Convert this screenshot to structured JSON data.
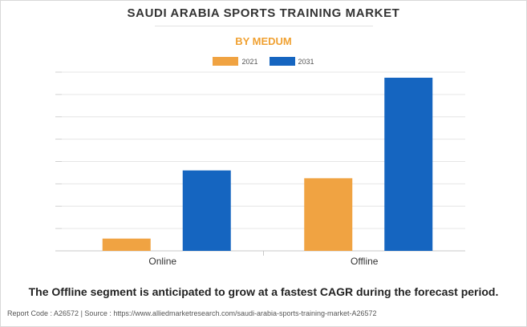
{
  "header": {
    "title": "SAUDI ARABIA SPORTS TRAINING MARKET",
    "subtitle": "BY MEDUM"
  },
  "footer": {
    "statement": "The Offline segment is anticipated to grow at a fastest CAGR during the forecast period.",
    "source": "Report Code : A26572  |  Source : https://www.alliedmarketresearch.com/saudi-arabia-sports-training-market-A26572"
  },
  "colors": {
    "series_2021": "#f0a342",
    "series_2031": "#1565c0",
    "accent": "#f0a132"
  },
  "chart_data": {
    "type": "bar",
    "categories": [
      "Online",
      "Offline"
    ],
    "series": [
      {
        "name": "2021",
        "values": [
          0.55,
          3.25
        ]
      },
      {
        "name": "2031",
        "values": [
          3.6,
          7.75
        ]
      }
    ],
    "ylim": [
      0,
      8
    ],
    "yticks": [
      0,
      1,
      2,
      3,
      4,
      5,
      6,
      7,
      8
    ],
    "grid": true,
    "legend": "top-center",
    "xlabel": "",
    "ylabel": ""
  }
}
